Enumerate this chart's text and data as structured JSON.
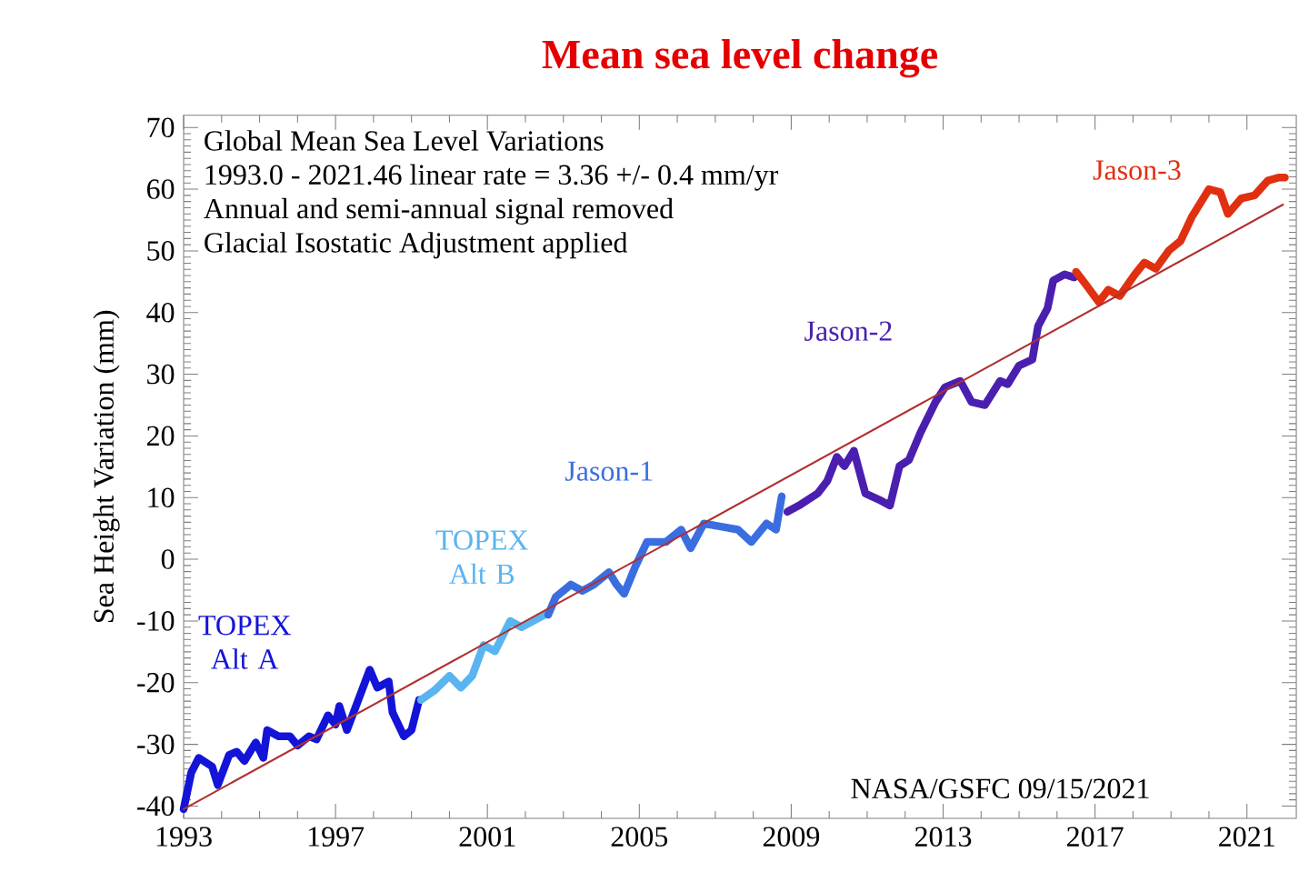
{
  "chart_data": {
    "type": "line",
    "title": "Mean sea level change",
    "ylabel": "Sea Height Variation (mm)",
    "xlim": [
      1993,
      2022.3
    ],
    "ylim": [
      -42,
      72
    ],
    "xticks": [
      1993,
      1997,
      2001,
      2005,
      2009,
      2013,
      2017,
      2021
    ],
    "yticks": [
      -40,
      -30,
      -20,
      -10,
      0,
      10,
      20,
      30,
      40,
      50,
      60,
      70
    ],
    "marker": "none",
    "line_style": "solid",
    "annotations": [
      "Global Mean Sea Level Variations",
      "1993.0 - 2021.46 linear rate  = 3.36 +/- 0.4 mm/yr",
      "Annual and semi-annual signal removed",
      "Glacial Isostatic Adjustment applied",
      "NASA/GSFC  09/15/2021"
    ],
    "series": [
      {
        "name": "TOPEX Alt A",
        "color": "#1414d8",
        "x": [
          1993.0,
          1993.2,
          1993.4,
          1993.75,
          1993.9,
          1994.2,
          1994.4,
          1994.6,
          1994.9,
          1995.1,
          1995.2,
          1995.5,
          1995.8,
          1996.0,
          1996.3,
          1996.5,
          1996.8,
          1997.0,
          1997.1,
          1997.3,
          1997.6,
          1997.9,
          1998.1,
          1998.4,
          1998.5,
          1998.8,
          1999.0,
          1999.2
        ],
        "values": [
          -40.5,
          -34.6,
          -32.2,
          -33.6,
          -36.6,
          -31.7,
          -31.2,
          -32.7,
          -29.7,
          -32.2,
          -27.7,
          -28.7,
          -28.7,
          -30.2,
          -28.7,
          -29.2,
          -25.3,
          -26.8,
          -23.8,
          -27.7,
          -22.8,
          -17.9,
          -20.8,
          -19.8,
          -24.8,
          -28.7,
          -27.7,
          -22.8
        ]
      },
      {
        "name": "TOPEX Alt B",
        "color": "#5ab4f0",
        "x": [
          1999.25,
          1999.6,
          2000.0,
          2000.3,
          2000.6,
          2000.9,
          2001.2,
          2001.6,
          2001.9,
          2002.2,
          2002.5
        ],
        "values": [
          -22.8,
          -21.3,
          -18.9,
          -20.8,
          -18.9,
          -13.9,
          -14.9,
          -10.0,
          -11.0,
          -10.0,
          -9.0
        ]
      },
      {
        "name": "Jason-1",
        "color": "#3a6ee0",
        "x": [
          2002.6,
          2002.8,
          2003.2,
          2003.5,
          2003.8,
          2004.2,
          2004.4,
          2004.6,
          2004.9,
          2005.2,
          2005.7,
          2006.1,
          2006.35,
          2006.7,
          2007.15,
          2007.6,
          2007.95,
          2008.35,
          2008.6,
          2008.75
        ],
        "values": [
          -9.0,
          -6.1,
          -4.1,
          -5.1,
          -4.1,
          -2.1,
          -4.1,
          -5.6,
          -1.1,
          2.8,
          2.8,
          4.8,
          1.8,
          5.8,
          5.3,
          4.8,
          2.8,
          5.8,
          4.8,
          10.2
        ]
      },
      {
        "name": "Jason-2",
        "color": "#4a1fb0",
        "x": [
          2008.9,
          2009.2,
          2009.7,
          2009.95,
          2010.2,
          2010.4,
          2010.65,
          2010.95,
          2011.3,
          2011.6,
          2011.85,
          2012.1,
          2012.4,
          2012.8,
          2013.05,
          2013.45,
          2013.75,
          2014.1,
          2014.5,
          2014.7,
          2015.0,
          2015.35,
          2015.5,
          2015.75,
          2015.9,
          2016.2,
          2016.45
        ],
        "values": [
          7.7,
          8.7,
          10.7,
          12.7,
          16.6,
          15.1,
          17.6,
          10.7,
          9.7,
          8.7,
          15.1,
          16.1,
          20.5,
          25.5,
          27.9,
          28.9,
          25.5,
          25.0,
          28.9,
          28.4,
          31.4,
          32.4,
          37.8,
          40.7,
          45.2,
          46.2,
          45.7
        ]
      },
      {
        "name": "Jason-3",
        "color": "#e03010",
        "x": [
          2016.5,
          2016.8,
          2017.1,
          2017.35,
          2017.65,
          2018.05,
          2018.3,
          2018.6,
          2018.95,
          2019.25,
          2019.55,
          2020.0,
          2020.3,
          2020.5,
          2020.85,
          2021.2,
          2021.55,
          2021.85,
          2022.0
        ],
        "values": [
          46.6,
          44.2,
          41.7,
          43.7,
          42.7,
          46.2,
          48.1,
          47.1,
          50.1,
          51.6,
          55.5,
          60.0,
          59.5,
          56.0,
          58.5,
          59.0,
          61.4,
          61.9,
          61.9
        ]
      },
      {
        "color": "#b03030",
        "x": [
          1993.0,
          2021.95
        ],
        "values": [
          -40.5,
          57.5
        ]
      }
    ]
  }
}
